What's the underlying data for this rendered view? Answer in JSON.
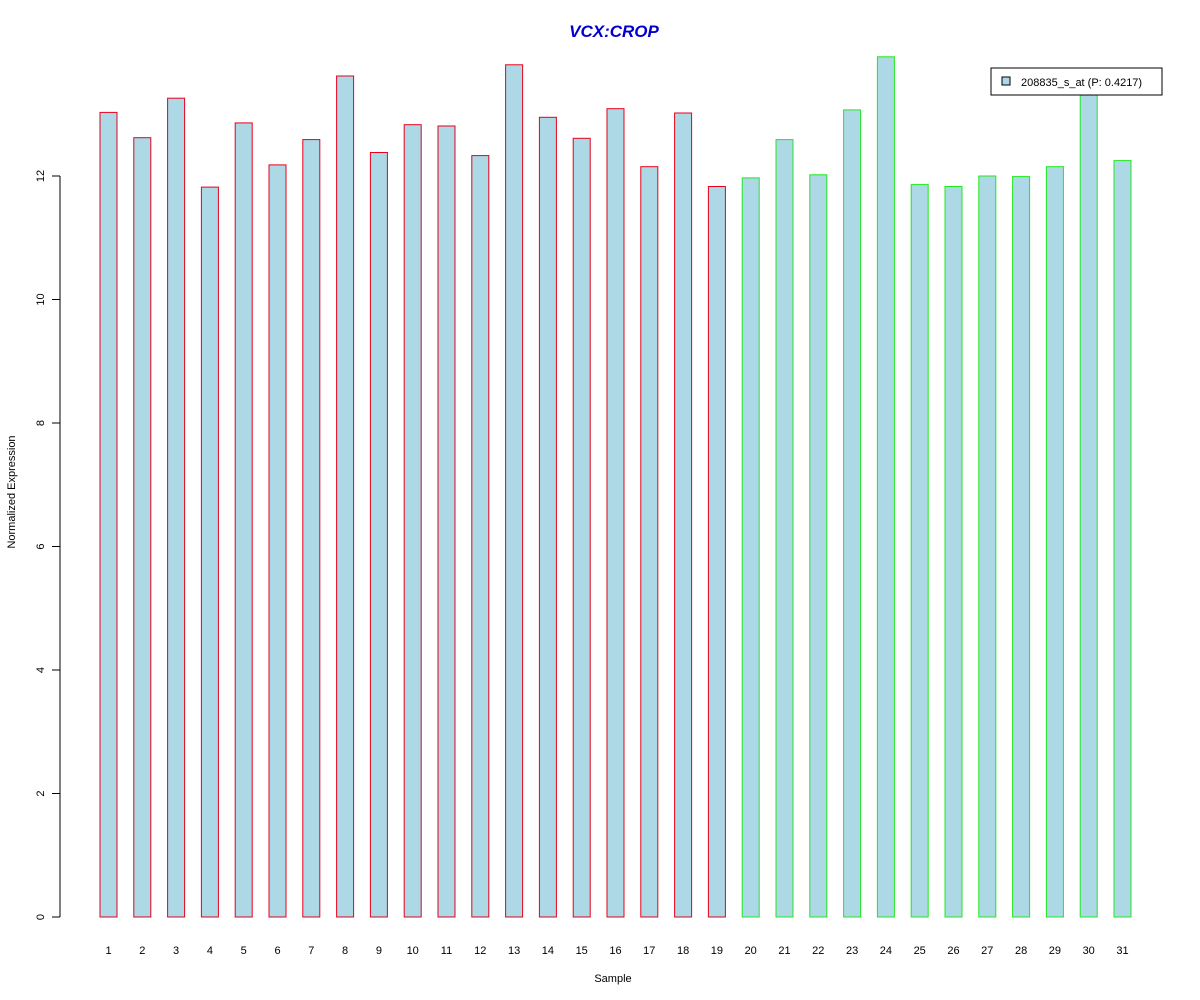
{
  "chart_data": {
    "type": "bar",
    "title": "VCX:CROP",
    "xlabel": "Sample",
    "ylabel": "Normalized Expression",
    "categories": [
      "1",
      "2",
      "3",
      "4",
      "5",
      "6",
      "7",
      "8",
      "9",
      "10",
      "11",
      "12",
      "13",
      "14",
      "15",
      "16",
      "17",
      "18",
      "19",
      "20",
      "21",
      "22",
      "23",
      "24",
      "25",
      "26",
      "27",
      "28",
      "29",
      "30",
      "31"
    ],
    "y_ticks": [
      "0",
      "2",
      "4",
      "6",
      "8",
      "10",
      "12"
    ],
    "ylim": [
      0,
      13.9
    ],
    "series": [
      {
        "name": "208835_s_at (P: 0.4217)",
        "values": [
          13.03,
          12.62,
          13.26,
          11.82,
          12.86,
          12.18,
          12.59,
          13.62,
          12.38,
          12.83,
          12.81,
          12.33,
          13.8,
          12.95,
          12.61,
          13.09,
          12.15,
          13.02,
          11.83,
          11.97,
          12.59,
          12.02,
          13.07,
          13.93,
          11.86,
          11.83,
          12.0,
          11.99,
          12.15,
          13.46,
          12.25
        ]
      }
    ],
    "groups": [
      {
        "samples": [
          1,
          19
        ],
        "border_color": "#e8001c"
      },
      {
        "samples": [
          20,
          31
        ],
        "border_color": "#1ee81e"
      }
    ],
    "bar_fill": "#add8e6",
    "title_color": "#0000cc",
    "legend_position": "top-right",
    "grid": false
  }
}
